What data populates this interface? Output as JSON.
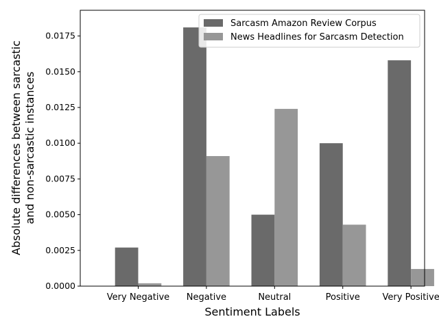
{
  "chart_data": {
    "type": "bar",
    "title": "",
    "xlabel": "Sentiment Labels",
    "ylabel_lines": [
      "Absolute differences between sarcastic",
      "and non-sarcastic instances"
    ],
    "categories": [
      "Very Negative",
      "Negative",
      "Neutral",
      "Positive",
      "Very Positive"
    ],
    "series": [
      {
        "name": "Sarcasm Amazon Review Corpus",
        "color": "#6a6a6a",
        "values": [
          0.0027,
          0.0181,
          0.005,
          0.01,
          0.0158
        ]
      },
      {
        "name": "News Headlines for Sarcasm Detection",
        "color": "#979797",
        "values": [
          0.0002,
          0.0091,
          0.0124,
          0.0043,
          0.0012
        ]
      }
    ],
    "ylim": [
      0,
      0.0193
    ],
    "yticks": [
      "0.0000",
      "0.0025",
      "0.0050",
      "0.0075",
      "0.0100",
      "0.0125",
      "0.0150",
      "0.0175"
    ],
    "grid": false,
    "legend_position": "top-right"
  }
}
